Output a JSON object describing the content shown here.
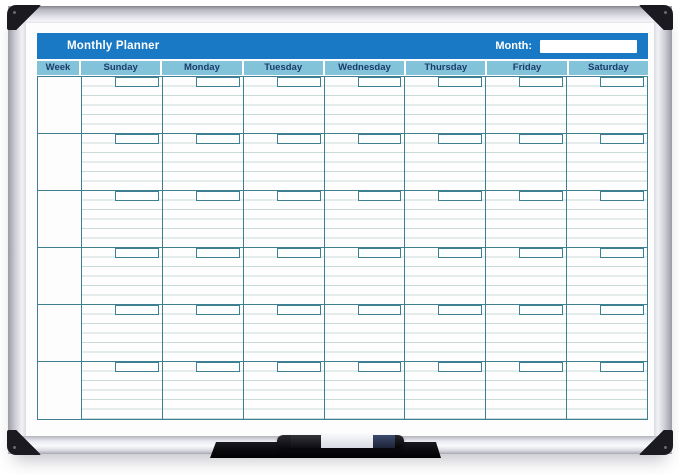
{
  "board": {
    "title": "Monthly Planner",
    "month_label": "Month:",
    "month_value": "",
    "columns": [
      "Week",
      "Sunday",
      "Monday",
      "Tuesday",
      "Wednesday",
      "Thursday",
      "Friday",
      "Saturday"
    ],
    "weeks": 6,
    "ruled_lines_per_cell": 6,
    "colors": {
      "banner_blue": "#1a79c4",
      "day_header_blue": "#82c3da",
      "day_header_text": "#1c3c6a",
      "grid_border_teal": "#3e7f91",
      "ruled_line": "#c9dbd9",
      "frame_silver": "#cdcdd6",
      "corner_cap_black": "#1a1a20",
      "tray_black": "#0c0c11",
      "marker_label": "#e7e9f0",
      "marker_cap_navy": "#273352"
    }
  }
}
